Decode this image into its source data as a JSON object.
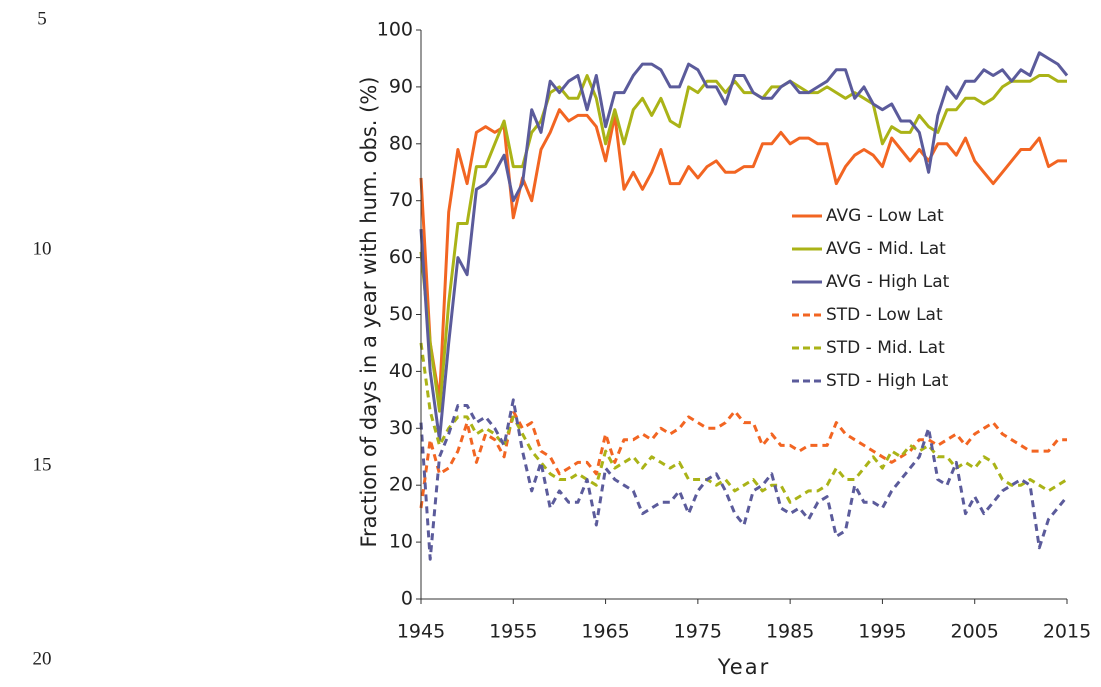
{
  "margin_line_numbers": [
    5,
    10,
    15,
    20
  ],
  "chart_data": {
    "type": "line",
    "y_label": "Fraction of days in a year with hum. obs. (%)",
    "x_label": "Year",
    "x": [
      1945,
      1946,
      1947,
      1948,
      1949,
      1950,
      1951,
      1952,
      1953,
      1954,
      1955,
      1956,
      1957,
      1958,
      1959,
      1960,
      1961,
      1962,
      1963,
      1964,
      1965,
      1966,
      1967,
      1968,
      1969,
      1970,
      1971,
      1972,
      1973,
      1974,
      1975,
      1976,
      1977,
      1978,
      1979,
      1980,
      1981,
      1982,
      1983,
      1984,
      1985,
      1986,
      1987,
      1988,
      1989,
      1990,
      1991,
      1992,
      1993,
      1994,
      1995,
      1996,
      1997,
      1998,
      1999,
      2000,
      2001,
      2002,
      2003,
      2004,
      2005,
      2006,
      2007,
      2008,
      2009,
      2010,
      2011,
      2012,
      2013,
      2014,
      2015
    ],
    "series": [
      {
        "name": "AVG - Low Lat",
        "color": "#f26522",
        "dashed": false,
        "values": [
          74,
          45,
          35,
          68,
          79,
          73,
          82,
          83,
          82,
          83,
          67,
          74,
          70,
          79,
          82,
          86,
          84,
          85,
          85,
          83,
          77,
          85,
          72,
          75,
          72,
          75,
          79,
          73,
          73,
          76,
          74,
          76,
          77,
          75,
          75,
          76,
          76,
          80,
          80,
          82,
          80,
          81,
          81,
          80,
          80,
          73,
          76,
          78,
          79,
          78,
          76,
          81,
          79,
          77,
          79,
          77,
          80,
          80,
          78,
          81,
          77,
          75,
          73,
          75,
          77,
          79,
          79,
          81,
          76,
          77,
          77
        ]
      },
      {
        "name": "AVG - Mid. Lat",
        "color": "#aab317",
        "dashed": false,
        "values": [
          61,
          45,
          33,
          52,
          66,
          66,
          76,
          76,
          80,
          84,
          76,
          76,
          82,
          84,
          89,
          90,
          88,
          88,
          92,
          88,
          80,
          86,
          80,
          86,
          88,
          85,
          88,
          84,
          83,
          90,
          89,
          91,
          91,
          89,
          91,
          89,
          89,
          88,
          90,
          90,
          91,
          90,
          89,
          89,
          90,
          89,
          88,
          89,
          88,
          87,
          80,
          83,
          82,
          82,
          85,
          83,
          82,
          86,
          86,
          88,
          88,
          87,
          88,
          90,
          91,
          91,
          91,
          92,
          92,
          91,
          91
        ]
      },
      {
        "name": "AVG - High Lat",
        "color": "#5b5b9b",
        "dashed": false,
        "values": [
          65,
          40,
          28,
          45,
          60,
          57,
          72,
          73,
          75,
          78,
          70,
          73,
          86,
          82,
          91,
          89,
          91,
          92,
          86,
          92,
          83,
          89,
          89,
          92,
          94,
          94,
          93,
          90,
          90,
          94,
          93,
          90,
          90,
          87,
          92,
          92,
          89,
          88,
          88,
          90,
          91,
          89,
          89,
          90,
          91,
          93,
          93,
          88,
          90,
          87,
          86,
          87,
          84,
          84,
          82,
          75,
          85,
          90,
          88,
          91,
          91,
          93,
          92,
          93,
          91,
          93,
          92,
          96,
          95,
          94,
          92
        ]
      },
      {
        "name": "STD - Low Lat",
        "color": "#f26522",
        "dashed": true,
        "values": [
          16,
          28,
          22,
          23,
          26,
          31,
          24,
          29,
          28,
          25,
          33,
          30,
          31,
          26,
          25,
          22,
          23,
          24,
          24,
          22,
          29,
          24,
          28,
          28,
          29,
          28,
          30,
          29,
          30,
          32,
          31,
          30,
          30,
          31,
          33,
          31,
          31,
          27,
          29,
          27,
          27,
          26,
          27,
          27,
          27,
          31,
          29,
          28,
          27,
          26,
          25,
          24,
          25,
          26,
          28,
          28,
          27,
          28,
          29,
          27,
          29,
          30,
          31,
          29,
          28,
          27,
          26,
          26,
          26,
          28,
          28
        ]
      },
      {
        "name": "STD - Mid. Lat",
        "color": "#aab317",
        "dashed": true,
        "values": [
          45,
          33,
          27,
          30,
          32,
          32,
          29,
          30,
          29,
          27,
          32,
          29,
          26,
          24,
          22,
          21,
          21,
          22,
          21,
          20,
          26,
          23,
          24,
          25,
          23,
          25,
          24,
          23,
          24,
          21,
          21,
          21,
          20,
          21,
          19,
          20,
          21,
          19,
          20,
          20,
          17,
          18,
          19,
          19,
          20,
          23,
          21,
          21,
          23,
          25,
          23,
          26,
          25,
          27,
          26,
          27,
          25,
          25,
          23,
          24,
          23,
          25,
          24,
          21,
          20,
          20,
          21,
          20,
          19,
          20,
          21
        ]
      },
      {
        "name": "STD - High Lat",
        "color": "#5b5b9b",
        "dashed": true,
        "values": [
          31,
          7,
          25,
          29,
          34,
          34,
          31,
          32,
          30,
          27,
          35,
          26,
          19,
          24,
          16,
          19,
          17,
          17,
          21,
          13,
          23,
          21,
          20,
          19,
          15,
          16,
          17,
          17,
          19,
          15,
          19,
          21,
          22,
          19,
          15,
          13,
          19,
          20,
          22,
          16,
          15,
          16,
          14,
          17,
          18,
          11,
          12,
          20,
          17,
          17,
          16,
          19,
          21,
          23,
          25,
          30,
          21,
          20,
          24,
          15,
          18,
          15,
          17,
          19,
          20,
          21,
          20,
          9,
          14,
          16,
          18
        ]
      }
    ],
    "xlim": [
      1945,
      2015
    ],
    "xticks": [
      1945,
      1955,
      1965,
      1975,
      1985,
      1995,
      2005,
      2015
    ],
    "ylim": [
      0,
      100
    ],
    "yticks": [
      0,
      10,
      20,
      30,
      40,
      50,
      60,
      70,
      80,
      90,
      100
    ],
    "grid": false,
    "legend": "right"
  }
}
